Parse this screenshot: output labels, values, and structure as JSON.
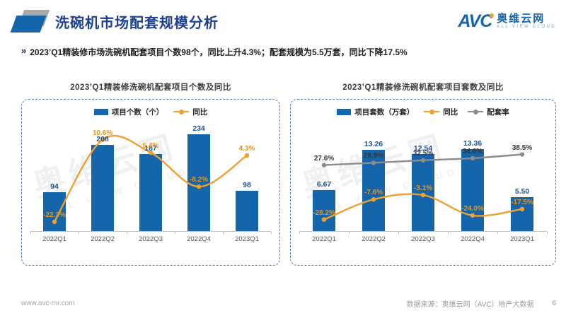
{
  "header": {
    "title": "洗碗机市场配套规模分析",
    "logo": {
      "abbr": "AVC",
      "cn": "奥维云网",
      "sub": "ALL VIEW CLOUD"
    }
  },
  "summary": {
    "bullet": "»",
    "text": "2023’Q1精装修市场洗碗机配套项目个数98个，同比上升4.3%；配套规模为5.5万套，同比下降17.5%"
  },
  "watermark": {
    "big": "奥维云网",
    "small": "ALL VIEW CLOUD"
  },
  "colors": {
    "brand_blue": "#1565ab",
    "title_blue": "#1e4093",
    "bar_blue": "#1565ab",
    "bar_label_blue": "#1f5597",
    "line_orange": "#f0a030",
    "line_gray": "#8c8c8c",
    "dash_border": "#4a7ebb"
  },
  "chart_data": [
    {
      "type": "bar",
      "title": "2023’Q1精装修洗碗机配套项目个数及同比",
      "categories": [
        "2022Q1",
        "2022Q2",
        "2022Q3",
        "2022Q4",
        "2023Q1"
      ],
      "legend_position": "top",
      "grid": false,
      "series": [
        {
          "name": "项目个数（个）",
          "kind": "bar",
          "values": [
            94,
            208,
            187,
            234,
            98
          ],
          "labels": [
            "94",
            "208",
            "187",
            "234",
            "98"
          ],
          "color": "#1565ab",
          "label_color": "#1f5597",
          "ylim": [
            0,
            260
          ]
        },
        {
          "name": "同比",
          "kind": "line",
          "values": [
            -22.3,
            10.6,
            5.4,
            -8.2,
            4.3
          ],
          "labels": [
            "-22.3%",
            "10.6%",
            "5.4%",
            "-8.2%",
            "4.3%"
          ],
          "color": "#f0a030",
          "label_color": "#e8951c",
          "ylim": [
            -26,
            17
          ]
        }
      ]
    },
    {
      "type": "bar",
      "title": "2023’Q1精装修洗碗机配套项目套数及同比",
      "categories": [
        "2022Q1",
        "2022Q2",
        "2022Q3",
        "2022Q4",
        "2023Q1"
      ],
      "legend_position": "top",
      "grid": false,
      "series": [
        {
          "name": "项目套数（万套）",
          "kind": "bar",
          "values": [
            6.67,
            13.26,
            12.54,
            13.36,
            5.5
          ],
          "labels": [
            "6.67",
            "13.26",
            "12.54",
            "13.36",
            "5.50"
          ],
          "color": "#1565ab",
          "label_color": "#1f5597",
          "ylim": [
            0,
            17.5
          ]
        },
        {
          "name": "同比",
          "kind": "line",
          "values": [
            -28.2,
            -7.6,
            -3.1,
            -24.0,
            -17.5
          ],
          "labels": [
            "-28.2%",
            "-7.6%",
            "-3.1%",
            "-24.0%",
            "-17.5%"
          ],
          "color": "#f0a030",
          "label_color": "#e8951c",
          "ylim": [
            -40,
            70
          ]
        },
        {
          "name": "配套率",
          "kind": "line",
          "values": [
            27.6,
            29.9,
            32.5,
            34.6,
            38.5
          ],
          "labels": [
            "27.6%",
            "29.9%",
            "32.5%",
            "34.6%",
            "38.5%"
          ],
          "color": "#8c8c8c",
          "label_color": "#333333",
          "ylim": [
            -40,
            70
          ]
        }
      ]
    }
  ],
  "footer": {
    "website": "www.avc-mr.com",
    "source": "数据来源：奥维云网（AVC）地产大数据",
    "page": "6"
  }
}
